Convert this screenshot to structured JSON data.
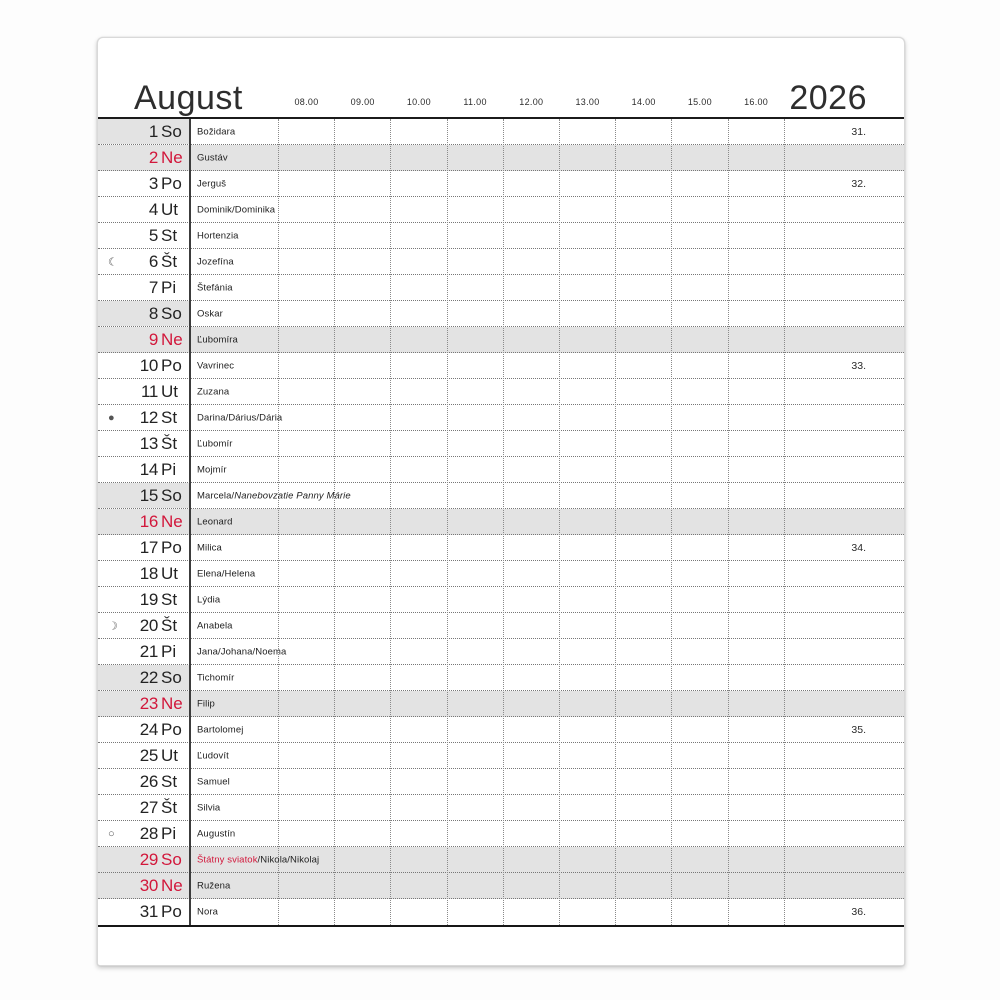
{
  "header": {
    "month": "August",
    "year": "2026",
    "times": [
      "08.00",
      "09.00",
      "10.00",
      "11.00",
      "12.00",
      "13.00",
      "14.00",
      "15.00",
      "16.00"
    ]
  },
  "colors": {
    "accent_red": "#d2173b",
    "weekend_gray": "#e3e3e3"
  },
  "calendar": {
    "rows": [
      {
        "day": "1",
        "weekday": "So",
        "type": "saturday",
        "week": "31.",
        "moon": null,
        "name_parts": [
          {
            "text": "Božidara",
            "style": "normal"
          }
        ]
      },
      {
        "day": "2",
        "weekday": "Ne",
        "type": "sunday",
        "week": null,
        "moon": null,
        "name_parts": [
          {
            "text": "Gustáv",
            "style": "normal"
          }
        ]
      },
      {
        "day": "3",
        "weekday": "Po",
        "type": "weekday",
        "week": "32.",
        "moon": null,
        "name_parts": [
          {
            "text": "Jerguš",
            "style": "normal"
          }
        ]
      },
      {
        "day": "4",
        "weekday": "Ut",
        "type": "weekday",
        "week": null,
        "moon": null,
        "name_parts": [
          {
            "text": "Dominik/Dominika",
            "style": "normal"
          }
        ]
      },
      {
        "day": "5",
        "weekday": "St",
        "type": "weekday",
        "week": null,
        "moon": null,
        "name_parts": [
          {
            "text": "Hortenzia",
            "style": "normal"
          }
        ]
      },
      {
        "day": "6",
        "weekday": "Št",
        "type": "weekday",
        "week": null,
        "moon": {
          "phase": "last-quarter",
          "glyph": "☾"
        },
        "name_parts": [
          {
            "text": "Jozefína",
            "style": "normal"
          }
        ]
      },
      {
        "day": "7",
        "weekday": "Pi",
        "type": "weekday",
        "week": null,
        "moon": null,
        "name_parts": [
          {
            "text": "Štefánia",
            "style": "normal"
          }
        ]
      },
      {
        "day": "8",
        "weekday": "So",
        "type": "saturday",
        "week": null,
        "moon": null,
        "name_parts": [
          {
            "text": "Oskar",
            "style": "normal"
          }
        ]
      },
      {
        "day": "9",
        "weekday": "Ne",
        "type": "sunday",
        "week": null,
        "moon": null,
        "name_parts": [
          {
            "text": "Ľubomíra",
            "style": "normal"
          }
        ]
      },
      {
        "day": "10",
        "weekday": "Po",
        "type": "weekday",
        "week": "33.",
        "moon": null,
        "name_parts": [
          {
            "text": "Vavrinec",
            "style": "normal"
          }
        ]
      },
      {
        "day": "11",
        "weekday": "Ut",
        "type": "weekday",
        "week": null,
        "moon": null,
        "name_parts": [
          {
            "text": "Zuzana",
            "style": "normal"
          }
        ]
      },
      {
        "day": "12",
        "weekday": "St",
        "type": "weekday",
        "week": null,
        "moon": {
          "phase": "new-moon",
          "glyph": "●"
        },
        "name_parts": [
          {
            "text": "Darina/Dárius/Dária",
            "style": "normal"
          }
        ]
      },
      {
        "day": "13",
        "weekday": "Št",
        "type": "weekday",
        "week": null,
        "moon": null,
        "name_parts": [
          {
            "text": "Ľubomír",
            "style": "normal"
          }
        ]
      },
      {
        "day": "14",
        "weekday": "Pi",
        "type": "weekday",
        "week": null,
        "moon": null,
        "name_parts": [
          {
            "text": "Mojmír",
            "style": "normal"
          }
        ]
      },
      {
        "day": "15",
        "weekday": "So",
        "type": "saturday",
        "week": null,
        "moon": null,
        "name_parts": [
          {
            "text": "Marcela/",
            "style": "normal"
          },
          {
            "text": "Nanebovzatie Panny Márie",
            "style": "italic"
          }
        ]
      },
      {
        "day": "16",
        "weekday": "Ne",
        "type": "sunday",
        "week": null,
        "moon": null,
        "name_parts": [
          {
            "text": "Leonard",
            "style": "normal"
          }
        ]
      },
      {
        "day": "17",
        "weekday": "Po",
        "type": "weekday",
        "week": "34.",
        "moon": null,
        "name_parts": [
          {
            "text": "Milica",
            "style": "normal"
          }
        ]
      },
      {
        "day": "18",
        "weekday": "Ut",
        "type": "weekday",
        "week": null,
        "moon": null,
        "name_parts": [
          {
            "text": "Elena/Helena",
            "style": "normal"
          }
        ]
      },
      {
        "day": "19",
        "weekday": "St",
        "type": "weekday",
        "week": null,
        "moon": null,
        "name_parts": [
          {
            "text": "Lýdia",
            "style": "normal"
          }
        ]
      },
      {
        "day": "20",
        "weekday": "Št",
        "type": "weekday",
        "week": null,
        "moon": {
          "phase": "first-quarter",
          "glyph": "☽"
        },
        "name_parts": [
          {
            "text": "Anabela",
            "style": "normal"
          }
        ]
      },
      {
        "day": "21",
        "weekday": "Pi",
        "type": "weekday",
        "week": null,
        "moon": null,
        "name_parts": [
          {
            "text": "Jana/Johana/Noema",
            "style": "normal"
          }
        ]
      },
      {
        "day": "22",
        "weekday": "So",
        "type": "saturday",
        "week": null,
        "moon": null,
        "name_parts": [
          {
            "text": "Tichomír",
            "style": "normal"
          }
        ]
      },
      {
        "day": "23",
        "weekday": "Ne",
        "type": "sunday",
        "week": null,
        "moon": null,
        "name_parts": [
          {
            "text": "Filip",
            "style": "normal"
          }
        ]
      },
      {
        "day": "24",
        "weekday": "Po",
        "type": "weekday",
        "week": "35.",
        "moon": null,
        "name_parts": [
          {
            "text": "Bartolomej",
            "style": "normal"
          }
        ]
      },
      {
        "day": "25",
        "weekday": "Ut",
        "type": "weekday",
        "week": null,
        "moon": null,
        "name_parts": [
          {
            "text": "Ľudovít",
            "style": "normal"
          }
        ]
      },
      {
        "day": "26",
        "weekday": "St",
        "type": "weekday",
        "week": null,
        "moon": null,
        "name_parts": [
          {
            "text": "Samuel",
            "style": "normal"
          }
        ]
      },
      {
        "day": "27",
        "weekday": "Št",
        "type": "weekday",
        "week": null,
        "moon": null,
        "name_parts": [
          {
            "text": "Silvia",
            "style": "normal"
          }
        ]
      },
      {
        "day": "28",
        "weekday": "Pi",
        "type": "weekday",
        "week": null,
        "moon": {
          "phase": "full-moon",
          "glyph": "○"
        },
        "name_parts": [
          {
            "text": "Augustín",
            "style": "normal"
          }
        ]
      },
      {
        "day": "29",
        "weekday": "So",
        "type": "holiday",
        "week": null,
        "moon": null,
        "name_parts": [
          {
            "text": "Štátny sviatok",
            "style": "red"
          },
          {
            "text": "/Nikola/Nikolaj",
            "style": "normal"
          }
        ]
      },
      {
        "day": "30",
        "weekday": "Ne",
        "type": "sunday",
        "week": null,
        "moon": null,
        "name_parts": [
          {
            "text": "Ružena",
            "style": "normal"
          }
        ]
      },
      {
        "day": "31",
        "weekday": "Po",
        "type": "weekday",
        "week": "36.",
        "moon": null,
        "name_parts": [
          {
            "text": "Nora",
            "style": "normal"
          }
        ]
      }
    ]
  }
}
